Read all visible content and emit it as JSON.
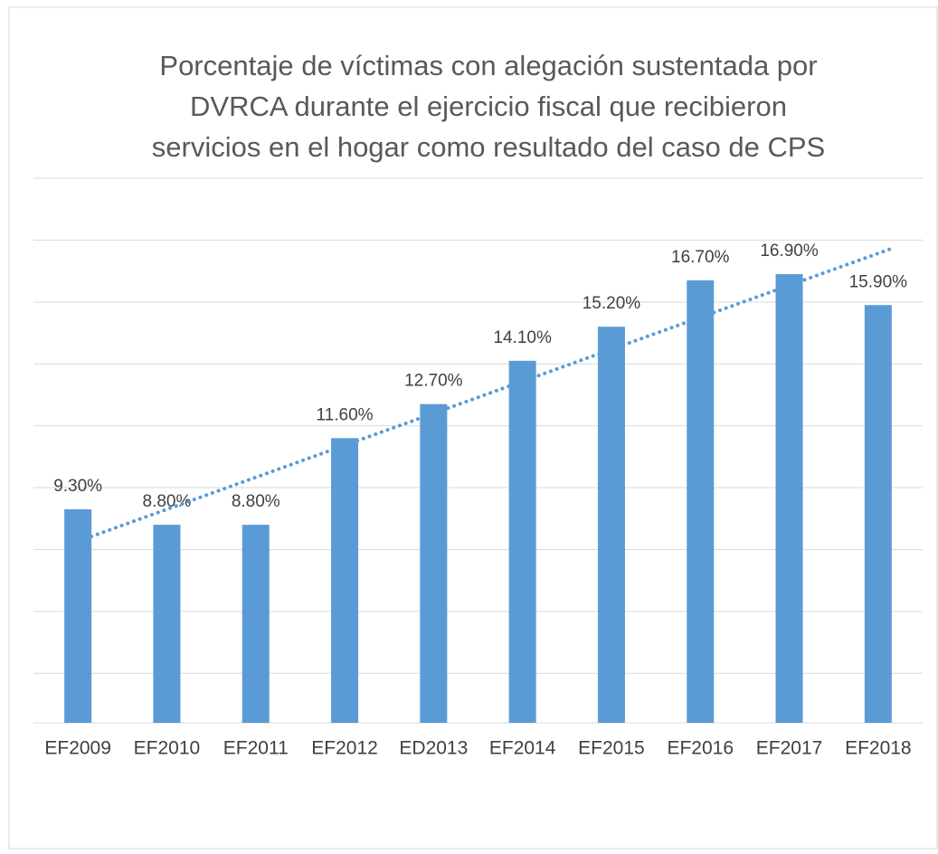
{
  "chart_data": {
    "type": "bar",
    "title": [
      "Porcentaje de víctimas con alegación sustentada por",
      "DVRCA durante el ejercicio fiscal que recibieron",
      "servicios en el hogar como resultado del caso de CPS"
    ],
    "categories": [
      "EF2009",
      "EF2010",
      "EF2011",
      "EF2012",
      "ED2013",
      "EF2014",
      "EF2015",
      "EF2016",
      "EF2017",
      "EF2018"
    ],
    "values": [
      9.3,
      8.8,
      8.8,
      11.6,
      12.7,
      14.1,
      15.2,
      16.7,
      16.9,
      15.9
    ],
    "value_labels": [
      "9.30%",
      "8.80%",
      "8.80%",
      "11.60%",
      "12.70%",
      "14.10%",
      "15.20%",
      "16.70%",
      "16.90%",
      "15.90%"
    ],
    "color": "#5b9bd5",
    "ylim": [
      2.4,
      20
    ],
    "yticks": [
      4,
      6,
      8,
      10,
      12,
      14,
      16,
      18,
      20
    ],
    "grid": true,
    "trendline": "linear"
  }
}
